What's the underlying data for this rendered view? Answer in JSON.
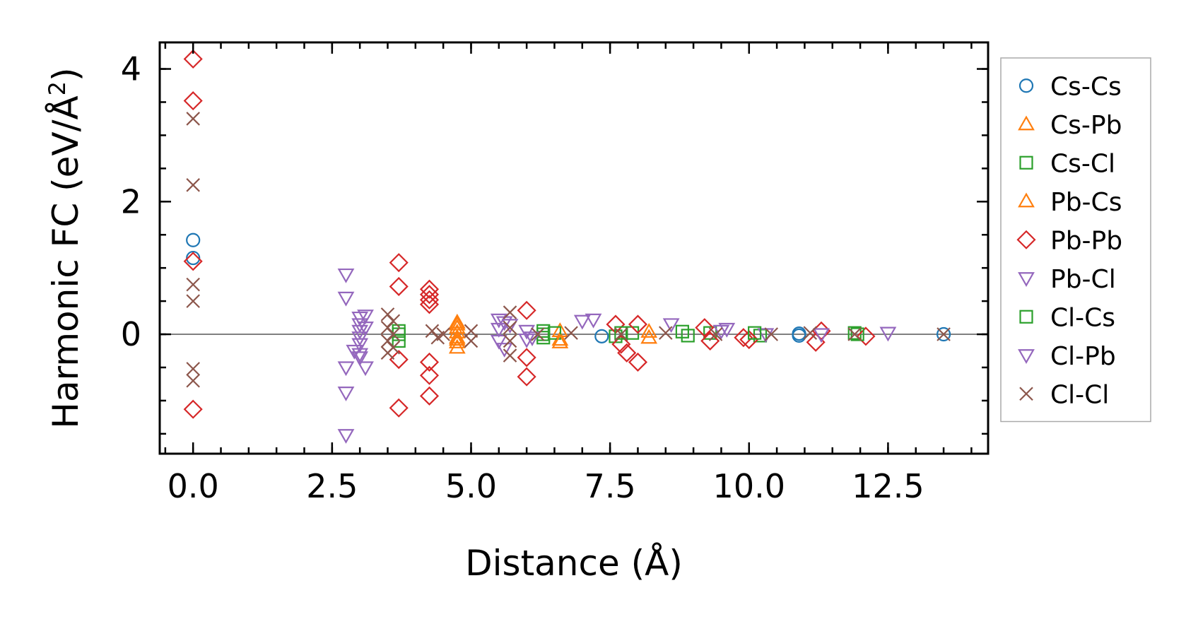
{
  "chart_data": {
    "type": "scatter",
    "title": "",
    "xlabel": "Distance (Å)",
    "ylabel_main": "Harmonic FC (eV/Å",
    "ylabel_sup": "2",
    "ylabel_close": ")",
    "xlim": [
      -0.6,
      14.3
    ],
    "ylim": [
      -1.8,
      4.4
    ],
    "xticks": [
      0.0,
      2.5,
      5.0,
      7.5,
      10.0,
      12.5
    ],
    "xtick_labels": [
      "0.0",
      "2.5",
      "5.0",
      "7.5",
      "10.0",
      "12.5"
    ],
    "yticks": [
      0,
      2,
      4
    ],
    "ytick_labels": [
      "0",
      "2",
      "4"
    ],
    "x_minor_step": 0.5,
    "y_minor_step": 0.5,
    "zero_line": true,
    "legend_position": "right, outside",
    "series": [
      {
        "name": "Cs-Cs",
        "marker": "circle",
        "color": "#1f77b4",
        "points": [
          [
            0.0,
            1.42
          ],
          [
            0.0,
            1.15
          ],
          [
            7.35,
            -0.03
          ],
          [
            10.9,
            -0.02
          ],
          [
            10.9,
            0.01
          ],
          [
            13.5,
            0.0
          ]
        ]
      },
      {
        "name": "Cs-Pb",
        "marker": "triangle-up",
        "color": "#ff7f0e",
        "points": [
          [
            4.75,
            0.18
          ],
          [
            4.75,
            0.1
          ],
          [
            4.75,
            0.03
          ],
          [
            4.75,
            -0.05
          ],
          [
            4.75,
            -0.12
          ],
          [
            4.75,
            -0.2
          ],
          [
            6.6,
            -0.08
          ],
          [
            6.6,
            0.05
          ],
          [
            8.2,
            -0.05
          ]
        ]
      },
      {
        "name": "Cs-Cl",
        "marker": "square",
        "color": "#2ca02c",
        "points": [
          [
            3.7,
            -0.1
          ],
          [
            3.7,
            0.05
          ],
          [
            6.3,
            -0.05
          ],
          [
            6.3,
            0.05
          ],
          [
            6.5,
            0.02
          ],
          [
            7.6,
            -0.03
          ],
          [
            7.9,
            0.02
          ],
          [
            8.8,
            0.04
          ],
          [
            9.3,
            0.02
          ],
          [
            10.2,
            -0.02
          ],
          [
            11.9,
            0.02
          ]
        ]
      },
      {
        "name": "Pb-Cs",
        "marker": "triangle-up",
        "color": "#ff7f0e",
        "points": [
          [
            4.75,
            0.15
          ],
          [
            4.75,
            -0.08
          ],
          [
            6.6,
            -0.12
          ],
          [
            8.2,
            0.04
          ]
        ]
      },
      {
        "name": "Pb-Pb",
        "marker": "diamond",
        "color": "#d62728",
        "points": [
          [
            0.0,
            4.15
          ],
          [
            0.0,
            3.52
          ],
          [
            0.0,
            1.1
          ],
          [
            0.0,
            -1.13
          ],
          [
            3.7,
            1.08
          ],
          [
            3.7,
            0.72
          ],
          [
            3.7,
            -0.38
          ],
          [
            3.7,
            -1.11
          ],
          [
            4.25,
            0.68
          ],
          [
            4.25,
            0.6
          ],
          [
            4.25,
            0.52
          ],
          [
            4.25,
            0.45
          ],
          [
            4.25,
            -0.42
          ],
          [
            4.25,
            -0.62
          ],
          [
            4.25,
            -0.93
          ],
          [
            6.0,
            0.36
          ],
          [
            6.0,
            -0.35
          ],
          [
            6.0,
            -0.64
          ],
          [
            7.6,
            0.15
          ],
          [
            7.7,
            -0.15
          ],
          [
            7.8,
            -0.28
          ],
          [
            8.0,
            0.15
          ],
          [
            8.0,
            -0.42
          ],
          [
            9.2,
            0.1
          ],
          [
            9.3,
            -0.1
          ],
          [
            9.9,
            -0.05
          ],
          [
            10.0,
            -0.08
          ],
          [
            11.2,
            -0.12
          ],
          [
            11.3,
            0.05
          ],
          [
            12.1,
            -0.03
          ]
        ]
      },
      {
        "name": "Pb-Cl",
        "marker": "triangle-down",
        "color": "#9467bd",
        "points": [
          [
            2.75,
            0.9
          ],
          [
            2.75,
            0.55
          ],
          [
            2.75,
            -0.5
          ],
          [
            2.75,
            -0.88
          ],
          [
            2.75,
            -1.52
          ],
          [
            3.0,
            0.25
          ],
          [
            3.0,
            0.15
          ],
          [
            3.0,
            0.05
          ],
          [
            3.0,
            -0.05
          ],
          [
            3.0,
            -0.15
          ],
          [
            3.0,
            -0.3
          ],
          [
            3.1,
            -0.5
          ],
          [
            3.1,
            0.1
          ],
          [
            5.5,
            0.22
          ],
          [
            5.5,
            0.08
          ],
          [
            5.5,
            -0.1
          ],
          [
            5.6,
            -0.22
          ],
          [
            5.7,
            0.14
          ],
          [
            6.0,
            0.05
          ],
          [
            6.0,
            -0.08
          ],
          [
            7.0,
            0.2
          ],
          [
            7.2,
            0.22
          ],
          [
            8.6,
            0.15
          ],
          [
            9.5,
            0.05
          ],
          [
            10.3,
            0.0
          ],
          [
            12.5,
            0.02
          ]
        ]
      },
      {
        "name": "Cl-Cs",
        "marker": "square",
        "color": "#2ca02c",
        "points": [
          [
            3.7,
            0.0
          ],
          [
            6.3,
            0.0
          ],
          [
            7.7,
            0.02
          ],
          [
            8.9,
            -0.02
          ],
          [
            10.1,
            0.02
          ],
          [
            11.95,
            0.0
          ]
        ]
      },
      {
        "name": "Cl-Pb",
        "marker": "triangle-down",
        "color": "#9467bd",
        "points": [
          [
            2.9,
            -0.25
          ],
          [
            3.0,
            -0.35
          ],
          [
            3.1,
            0.28
          ],
          [
            5.6,
            0.18
          ],
          [
            6.1,
            -0.05
          ],
          [
            9.6,
            0.08
          ],
          [
            11.3,
            0.0
          ]
        ]
      },
      {
        "name": "Cl-Cl",
        "marker": "x",
        "color": "#8c564b",
        "points": [
          [
            0.0,
            3.25
          ],
          [
            0.0,
            2.25
          ],
          [
            0.0,
            0.75
          ],
          [
            0.0,
            0.5
          ],
          [
            0.0,
            -0.52
          ],
          [
            0.0,
            -0.7
          ],
          [
            3.5,
            0.3
          ],
          [
            3.5,
            0.1
          ],
          [
            3.5,
            -0.1
          ],
          [
            3.5,
            -0.28
          ],
          [
            3.6,
            0.2
          ],
          [
            3.6,
            0.0
          ],
          [
            3.6,
            -0.2
          ],
          [
            4.3,
            0.05
          ],
          [
            4.4,
            -0.05
          ],
          [
            4.5,
            0.0
          ],
          [
            5.0,
            0.05
          ],
          [
            5.0,
            -0.1
          ],
          [
            5.7,
            0.33
          ],
          [
            5.7,
            0.1
          ],
          [
            5.7,
            -0.1
          ],
          [
            5.7,
            -0.32
          ],
          [
            6.2,
            0.0
          ],
          [
            6.8,
            0.02
          ],
          [
            7.7,
            0.0
          ],
          [
            8.5,
            0.02
          ],
          [
            9.4,
            0.0
          ],
          [
            10.4,
            0.0
          ],
          [
            11.1,
            0.02
          ],
          [
            11.9,
            0.0
          ],
          [
            13.5,
            0.0
          ]
        ]
      }
    ]
  }
}
